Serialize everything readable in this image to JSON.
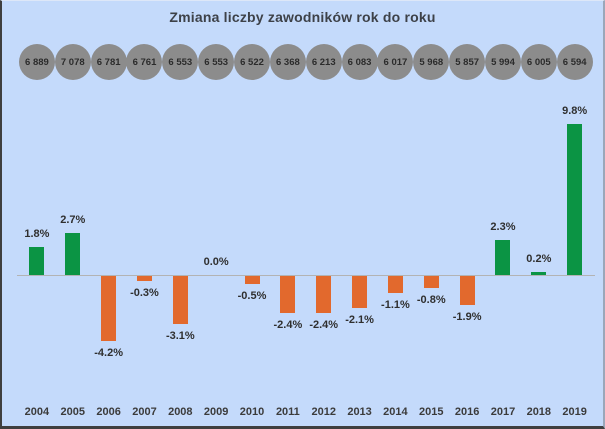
{
  "title": "Zmiana liczby zawodników rok do roku",
  "colors": {
    "background": "#c4dafb",
    "positive_bar": "#0b9444",
    "negative_bar": "#e2692d",
    "circle_fill": "#8c8c8c",
    "axis_line": "#b3b3b3",
    "title_text": "#3d4148"
  },
  "chart_data": {
    "type": "bar",
    "title": "Zmiana liczby zawodników rok do roku",
    "categories": [
      "2004",
      "2005",
      "2006",
      "2007",
      "2008",
      "2009",
      "2010",
      "2011",
      "2012",
      "2013",
      "2014",
      "2015",
      "2016",
      "2017",
      "2018",
      "2019"
    ],
    "values": [
      1.8,
      2.7,
      -4.2,
      -0.3,
      -3.1,
      0.0,
      -0.5,
      -2.4,
      -2.4,
      -2.1,
      -1.1,
      -0.8,
      -1.9,
      2.3,
      0.2,
      9.8
    ],
    "value_labels": [
      "1.8%",
      "2.7%",
      "-4.2%",
      "-0.3%",
      "-3.1%",
      "0.0%",
      "-0.5%",
      "-2.4%",
      "-2.4%",
      "-2.1%",
      "-1.1%",
      "-0.8%",
      "-1.9%",
      "2.3%",
      "0.2%",
      "9.8%"
    ],
    "totals": [
      "6 889",
      "7 078",
      "6 781",
      "6 761",
      "6 553",
      "6 553",
      "6 522",
      "6 368",
      "6 213",
      "6 083",
      "6 017",
      "5 968",
      "5 857",
      "5 994",
      "6 005",
      "6 594"
    ],
    "xlabel": "",
    "ylabel": "",
    "unit": "%",
    "ylim": [
      -5,
      10
    ],
    "grid": false,
    "legend": false,
    "series_colors": {
      "positive": "#0b9444",
      "negative": "#e2692d"
    }
  }
}
